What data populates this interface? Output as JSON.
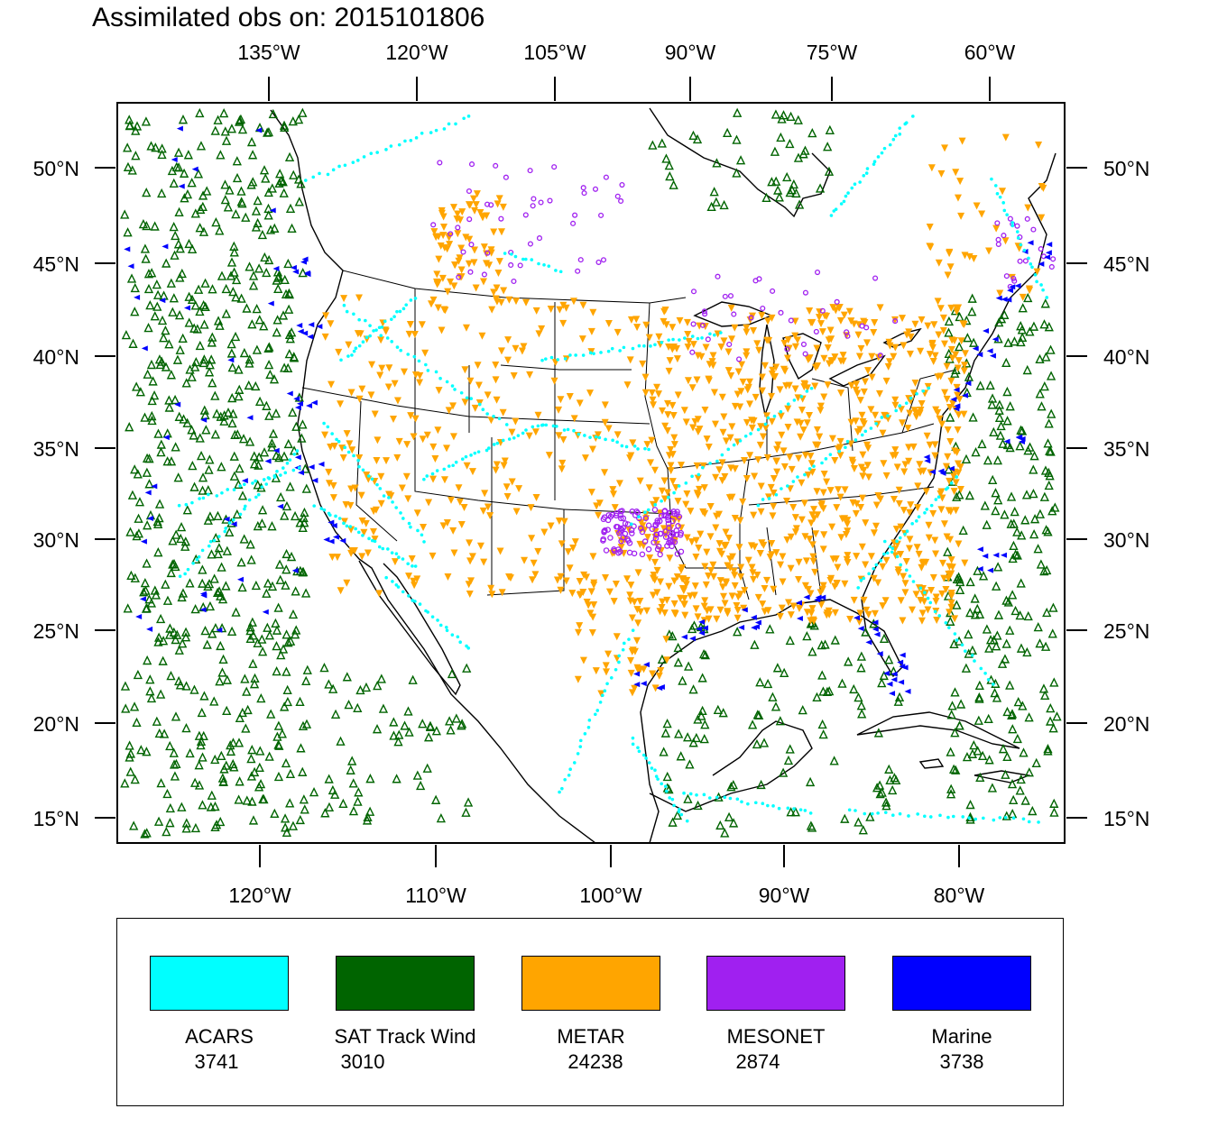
{
  "title": "Assimilated obs on: 2015101806",
  "axes": {
    "top_lon_labels": [
      "135°W",
      "120°W",
      "105°W",
      "90°W",
      "75°W",
      "60°W"
    ],
    "bottom_lon_labels": [
      "120°W",
      "110°W",
      "100°W",
      "90°W",
      "80°W"
    ],
    "lat_labels": [
      "50°N",
      "45°N",
      "40°N",
      "35°N",
      "30°N",
      "25°N",
      "20°N",
      "15°N"
    ]
  },
  "legend": [
    {
      "name": "ACARS",
      "count": "3741",
      "color": "#00ffff"
    },
    {
      "name": "SAT Track Wind",
      "count": "3010",
      "color": "#006400"
    },
    {
      "name": "METAR",
      "count": "24238",
      "color": "#ffa500"
    },
    {
      "name": "MESONET",
      "count": "2874",
      "color": "#a020f0"
    },
    {
      "name": "Marine",
      "count": "3738",
      "color": "#0000ff"
    }
  ]
}
